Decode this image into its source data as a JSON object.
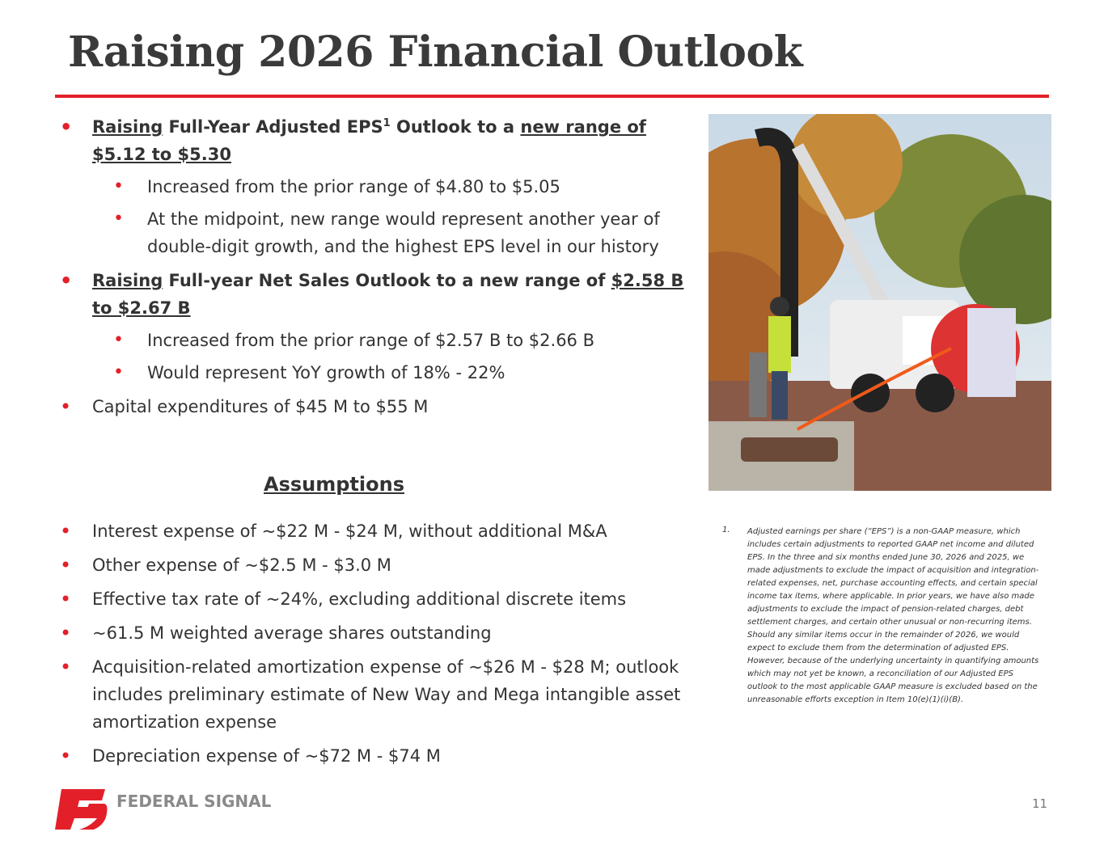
{
  "title": "Raising 2026 Financial Outlook",
  "outlook": [
    {
      "parts": [
        "Raising",
        " Full-Year Adjusted EPS",
        "1",
        " Outlook to a ",
        "new range of $5.12 to $5.30"
      ],
      "subs": [
        "Increased from the prior range of $4.80 to $5.05",
        "At the midpoint, new range would represent another year of double-digit growth, and the highest EPS level in our history"
      ]
    },
    {
      "parts": [
        "Raising",
        " Full-year Net Sales Outlook to a new range of ",
        "$2.58 B to $2.67 B"
      ],
      "subs": [
        "Increased from the prior range of $2.57 B to $2.66 B",
        "Would represent YoY growth of 18% - 22%"
      ]
    },
    {
      "parts": [
        "Capital expenditures of $45 M to $55 M"
      ]
    }
  ],
  "assumptions": {
    "heading": "Assumptions",
    "items": [
      "Interest expense of ~$22 M - $24 M, without additional M&A",
      "Other expense of ~$2.5 M - $3.0 M",
      "Effective tax rate of ~24%, excluding additional discrete items",
      "~61.5 M weighted average shares outstanding",
      "Acquisition-related amortization expense of ~$26 M - $28 M; outlook includes preliminary estimate of New Way and Mega intangible asset amortization expense",
      "Depreciation expense of ~$72 M - $74 M"
    ]
  },
  "footnote": {
    "marker": "1.",
    "text": "Adjusted earnings per share (“EPS”) is a non-GAAP measure, which includes certain adjustments to reported GAAP net income and diluted EPS. In the three and six months ended June 30, 2026 and 2025, we made adjustments to exclude the impact of acquisition and integration-related expenses, net, purchase accounting effects, and certain special income tax items, where applicable. In prior years, we have also made adjustments to exclude the impact of pension-related charges, debt settlement charges, and certain other unusual or non-recurring items. Should any similar items occur in the remainder of 2026, we would expect to exclude them from the determination of adjusted EPS. However, because of the underlying uncertainty in quantifying amounts which may not yet be known, a reconciliation of our Adjusted EPS outlook to the most applicable GAAP measure is excluded based on the unreasonable efforts exception in Item 10(e)(1)(i)(B)."
  },
  "logo": "FEDERAL SIGNAL",
  "page_number": "11"
}
